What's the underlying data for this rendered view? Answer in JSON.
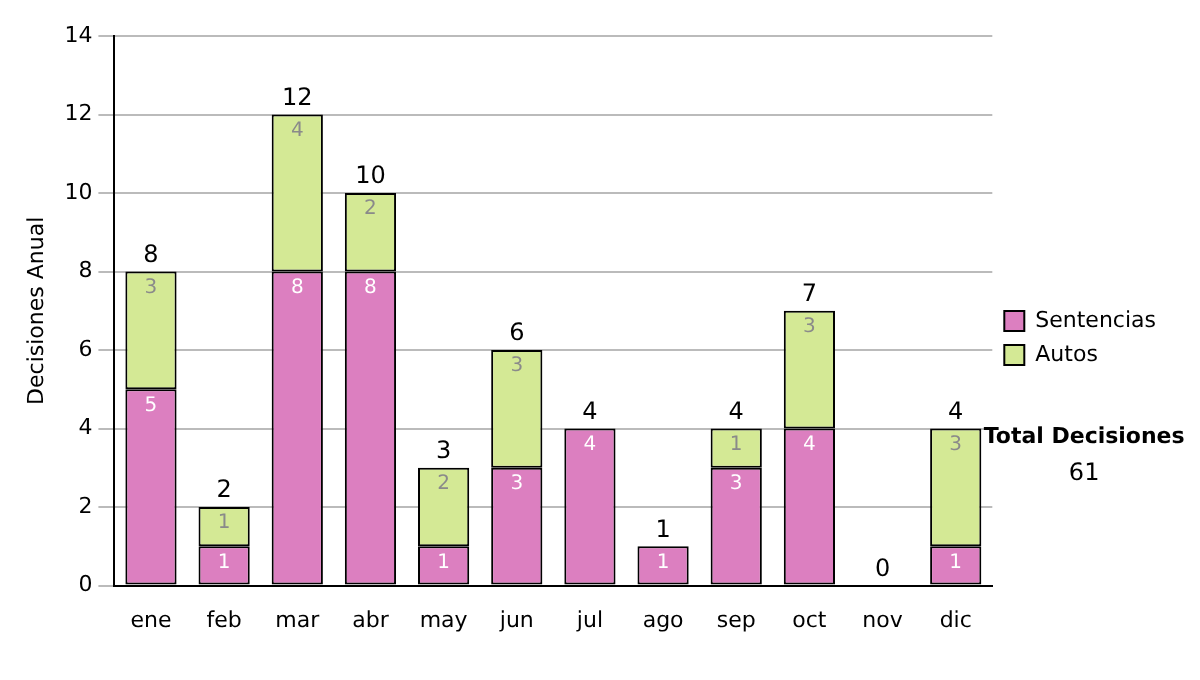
{
  "chart_data": {
    "type": "bar",
    "stacked": true,
    "ylabel": "Decisiones Anual",
    "categories": [
      "ene",
      "feb",
      "mar",
      "abr",
      "may",
      "jun",
      "jul",
      "ago",
      "sep",
      "oct",
      "nov",
      "dic"
    ],
    "series": [
      {
        "name": "Sentencias",
        "color": "#dc7fc0",
        "values": [
          5,
          1,
          8,
          8,
          1,
          3,
          4,
          1,
          3,
          4,
          0,
          1
        ],
        "value_labels": [
          "5",
          "1",
          "8",
          "8",
          "1",
          "3",
          "4",
          "1",
          "3",
          "4",
          null,
          "1"
        ]
      },
      {
        "name": "Autos",
        "color": "#d4e995",
        "values": [
          3,
          1,
          4,
          2,
          2,
          3,
          0,
          0,
          1,
          3,
          0,
          3
        ],
        "value_labels": [
          "3",
          "1",
          "4",
          "2",
          "2",
          "3",
          null,
          null,
          "1",
          "3",
          null,
          "3"
        ]
      }
    ],
    "totals": [
      "8",
      "2",
      "12",
      "10",
      "3",
      "6",
      "4",
      "1",
      "4",
      "7",
      "0",
      "4"
    ],
    "ylim": [
      0,
      14
    ],
    "yticks": [
      0,
      2,
      4,
      6,
      8,
      10,
      12,
      14
    ],
    "grid": "y",
    "legend": "right",
    "annotations": [
      "Total Decisiones",
      "61"
    ]
  }
}
